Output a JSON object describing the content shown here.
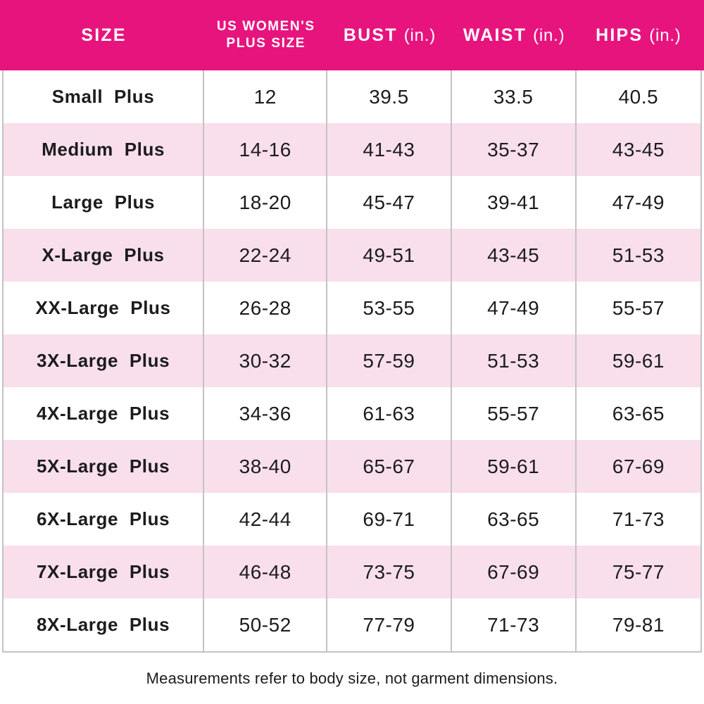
{
  "header": {
    "columns": [
      {
        "label": "SIZE"
      },
      {
        "line1": "US WOMEN'S",
        "line2": "PLUS SIZE"
      },
      {
        "label": "BUST",
        "unit": "(in.)"
      },
      {
        "label": "WAIST",
        "unit": "(in.)"
      },
      {
        "label": "HIPS",
        "unit": "(in.)"
      }
    ]
  },
  "chart_data": {
    "type": "table",
    "columns": [
      "SIZE",
      "US WOMEN'S PLUS SIZE",
      "BUST (in.)",
      "WAIST (in.)",
      "HIPS (in.)"
    ],
    "rows": [
      [
        "Small Plus",
        "12",
        "39.5",
        "33.5",
        "40.5"
      ],
      [
        "Medium Plus",
        "14-16",
        "41-43",
        "35-37",
        "43-45"
      ],
      [
        "Large Plus",
        "18-20",
        "45-47",
        "39-41",
        "47-49"
      ],
      [
        "X-Large Plus",
        "22-24",
        "49-51",
        "43-45",
        "51-53"
      ],
      [
        "XX-Large Plus",
        "26-28",
        "53-55",
        "47-49",
        "55-57"
      ],
      [
        "3X-Large Plus",
        "30-32",
        "57-59",
        "51-53",
        "59-61"
      ],
      [
        "4X-Large Plus",
        "34-36",
        "61-63",
        "55-57",
        "63-65"
      ],
      [
        "5X-Large Plus",
        "38-40",
        "65-67",
        "59-61",
        "67-69"
      ],
      [
        "6X-Large Plus",
        "42-44",
        "69-71",
        "63-65",
        "71-73"
      ],
      [
        "7X-Large Plus",
        "46-48",
        "73-75",
        "67-69",
        "75-77"
      ],
      [
        "8X-Large Plus",
        "50-52",
        "77-79",
        "71-73",
        "79-81"
      ]
    ],
    "footnote": "Measurements refer to body size, not garment dimensions."
  },
  "footer": {
    "note": "Measurements refer to body size, not garment dimensions."
  },
  "colors": {
    "header_bg": "#E7147E",
    "header_text": "#FFFFFF",
    "row_alt_bg": "#F9DFEB",
    "grid_line": "#C3C3C3",
    "body_text": "#1C1C1E"
  }
}
